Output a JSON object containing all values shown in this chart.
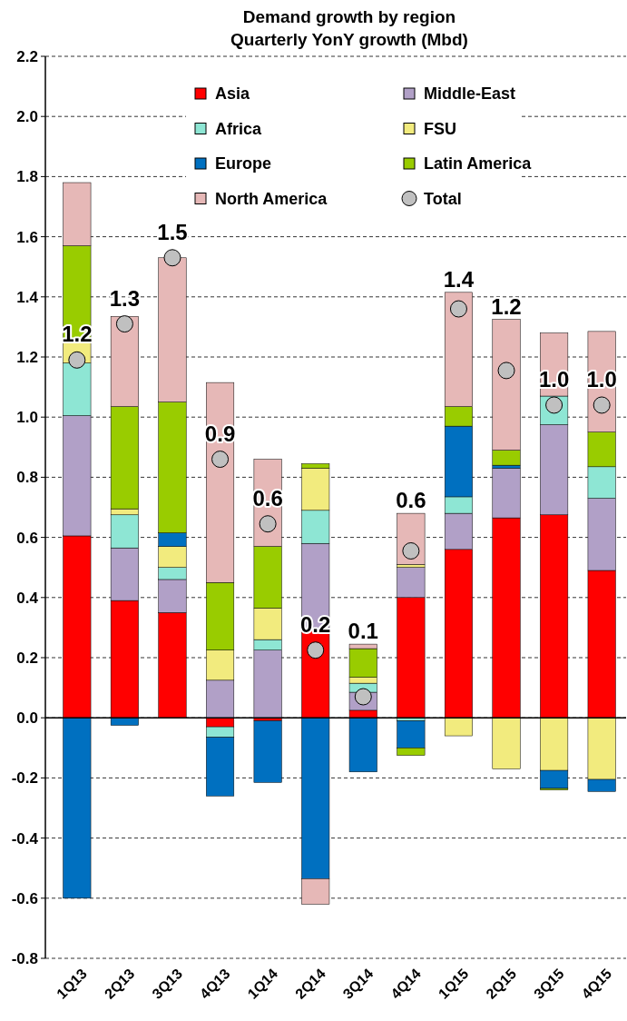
{
  "chart_data": {
    "type": "bar",
    "stacked": true,
    "title": "Demand growth by region",
    "subtitle": "Quarterly YonY growth (Mbd)",
    "categories": [
      "1Q13",
      "2Q13",
      "3Q13",
      "4Q13",
      "1Q14",
      "2Q14",
      "3Q14",
      "4Q14",
      "1Q15",
      "2Q15",
      "3Q15",
      "4Q15"
    ],
    "series": [
      {
        "name": "Asia",
        "color": "#ff0000",
        "values": [
          0.605,
          0.39,
          0.35,
          -0.03,
          -0.01,
          0.29,
          0.025,
          0.4,
          0.56,
          0.665,
          0.675,
          0.49
        ]
      },
      {
        "name": "Middle-East",
        "color": "#b1a0c7",
        "values": [
          0.4,
          0.175,
          0.11,
          0.125,
          0.225,
          0.29,
          0.06,
          0.1,
          0.12,
          0.165,
          0.3,
          0.24
        ]
      },
      {
        "name": "Africa",
        "color": "#8ee6d4",
        "values": [
          0.175,
          0.11,
          0.04,
          -0.035,
          0.035,
          0.11,
          0.03,
          -0.01,
          0.055,
          0,
          0.095,
          0.105
        ]
      },
      {
        "name": "FSU",
        "color": "#f2eb7e",
        "values": [
          0.07,
          0.02,
          0.07,
          0.1,
          0.105,
          0.14,
          0.02,
          0.01,
          -0.06,
          -0.17,
          -0.175,
          -0.205
        ]
      },
      {
        "name": "Europe",
        "color": "#0070c0",
        "values": [
          -0.6,
          -0.025,
          0.045,
          -0.195,
          -0.205,
          -0.535,
          -0.18,
          -0.09,
          0.235,
          0.01,
          -0.06,
          -0.04
        ]
      },
      {
        "name": "Latin America",
        "color": "#99cc00",
        "values": [
          0.32,
          0.34,
          0.435,
          0.225,
          0.205,
          0.015,
          0.095,
          -0.025,
          0.065,
          0.05,
          -0.005,
          0.115
        ]
      },
      {
        "name": "North America",
        "color": "#e6b8b7",
        "values": [
          0.21,
          0.3,
          0.48,
          0.665,
          0.29,
          -0.085,
          0.015,
          0.17,
          0.38,
          0.435,
          0.21,
          0.335
        ]
      },
      {
        "name": "Total",
        "type": "scatter",
        "color": "#c0c0c0",
        "marker": "circle",
        "x": [
          "1Q13",
          "2Q13",
          "3Q13",
          "4Q13",
          "1Q14",
          "2Q14",
          "3Q14",
          "4Q14",
          "1Q15",
          "2Q15",
          "3Q15",
          "4Q15"
        ],
        "values": [
          1.19,
          1.31,
          1.53,
          0.86,
          0.645,
          0.225,
          0.07,
          0.555,
          1.36,
          1.155,
          1.04,
          1.04
        ],
        "value_labels": [
          "1.2",
          "1.3",
          "1.5",
          "0.9",
          "0.6",
          "0.2",
          "0.1",
          "0.6",
          "1.4",
          "1.2",
          "1.0",
          "1.0"
        ]
      }
    ],
    "ylim": [
      -0.8,
      2.2
    ],
    "yticks": [
      {
        "value": -0.8,
        "label": "-0.8"
      },
      {
        "value": -0.6,
        "label": "-0.6"
      },
      {
        "value": -0.4,
        "label": "-0.4"
      },
      {
        "value": -0.2,
        "label": "-0.2"
      },
      {
        "value": 0,
        "label": "0.0"
      },
      {
        "value": 0.2,
        "label": "0.2"
      },
      {
        "value": 0.4,
        "label": "0.4"
      },
      {
        "value": 0.6,
        "label": "0.6"
      },
      {
        "value": 0.8,
        "label": "0.8"
      },
      {
        "value": 1,
        "label": "1.0"
      },
      {
        "value": 1.2,
        "label": "1.2"
      },
      {
        "value": 1.4,
        "label": "1.4"
      },
      {
        "value": 1.6,
        "label": "1.6"
      },
      {
        "value": 1.8,
        "label": "1.8"
      },
      {
        "value": 2,
        "label": "2.0"
      },
      {
        "value": 2.2,
        "label": "2.2"
      }
    ],
    "grid": "y",
    "legend": "top"
  }
}
